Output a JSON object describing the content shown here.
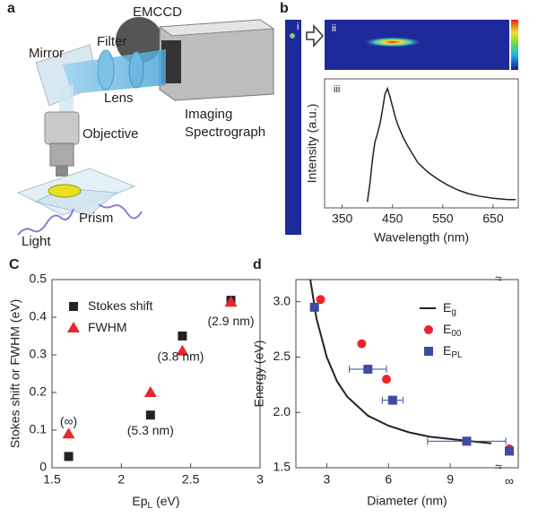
{
  "panel_a": {
    "label": "a",
    "labels": [
      "EMCCD",
      "Mirror",
      "Filter",
      "Lens",
      "Objective",
      "Imaging",
      "Spectrograph",
      "Prism",
      "Light"
    ]
  },
  "panel_b": {
    "label": "b",
    "insets": [
      "i",
      "ii",
      "iii"
    ]
  },
  "chart_data": [
    {
      "type": "line",
      "xlabel": "Wavelength (nm)",
      "ylabel": "Intensity (a.u.)",
      "color": "#222222",
      "x": [
        400,
        405,
        410,
        415,
        420,
        425,
        430,
        435,
        440,
        445,
        450,
        455,
        460,
        470,
        480,
        490,
        500,
        520,
        540,
        560,
        580,
        600,
        620,
        650,
        680,
        695
      ],
      "values": [
        0.05,
        0.2,
        0.4,
        0.55,
        0.62,
        0.7,
        0.82,
        0.95,
        1.0,
        0.93,
        0.85,
        0.77,
        0.7,
        0.6,
        0.52,
        0.45,
        0.38,
        0.3,
        0.24,
        0.19,
        0.15,
        0.12,
        0.1,
        0.08,
        0.07,
        0.07
      ],
      "xlim": [
        315,
        700
      ],
      "ylim": [
        0,
        1.08
      ],
      "xticks": [
        350,
        450,
        550,
        650
      ]
    },
    {
      "type": "scatter",
      "panel": "C",
      "ylabel": "Stokes shift or FWHM (eV)",
      "xlabel": {
        "main": "Ep",
        "sub": "L",
        "unit": "(eV)"
      },
      "xlim": [
        1.5,
        3
      ],
      "ylim": [
        0,
        0.5
      ],
      "xticks": [
        1.5,
        2,
        2.5,
        3
      ],
      "yticks": [
        0,
        0.1,
        0.2,
        0.3,
        0.4,
        0.5
      ],
      "series": [
        {
          "name": "Stokes shift",
          "color": "#222222",
          "marker": "square",
          "x": [
            1.62,
            2.21,
            2.44,
            2.79
          ],
          "values": [
            0.03,
            0.14,
            0.35,
            0.445
          ]
        },
        {
          "name": "FWHM",
          "color": "#e8262c",
          "marker": "triangle",
          "x": [
            1.62,
            2.21,
            2.44,
            2.79
          ],
          "values": [
            0.09,
            0.2,
            0.31,
            0.44
          ]
        }
      ],
      "annotations": [
        "(∞)",
        "(5.3 nm)",
        "(3.8 nm)",
        "(2.9 nm)"
      ]
    },
    {
      "type": "scatter",
      "panel": "d",
      "xlabel": "Diameter (nm)",
      "ylabel": "Energy (eV)",
      "xlim": [
        1.5,
        11
      ],
      "ylim": [
        1.5,
        3.2
      ],
      "xticks": [
        3,
        6,
        9
      ],
      "yticks": [
        1.5,
        {
          "value": 2,
          "label": "2.0"
        },
        2.5,
        {
          "value": 3,
          "label": "3.0"
        }
      ],
      "break_label": "∞",
      "series": [
        {
          "name": "E",
          "sub": "g",
          "type": "line",
          "color": "#222222",
          "x": [
            2.2,
            2.5,
            3,
            3.5,
            4,
            5,
            6,
            7,
            8,
            9,
            10,
            11
          ],
          "values": [
            3.2,
            2.85,
            2.5,
            2.28,
            2.14,
            1.97,
            1.88,
            1.82,
            1.78,
            1.76,
            1.74,
            1.72
          ]
        },
        {
          "name": "E",
          "sub": "00",
          "marker": "circle",
          "color": "#e8262c",
          "x": [
            2.7,
            4.7,
            5.9
          ],
          "values": [
            3.02,
            2.62,
            2.3
          ],
          "break_value": 1.67
        },
        {
          "name": "E",
          "sub": "PL",
          "marker": "square",
          "color": "#3d4aa6",
          "x": [
            2.4,
            5.0,
            6.2,
            9.8
          ],
          "values": [
            2.95,
            2.39,
            2.11,
            1.74
          ],
          "xerr": [
            0,
            0.9,
            0.5,
            1.9
          ],
          "break_value": 1.65
        }
      ]
    }
  ]
}
